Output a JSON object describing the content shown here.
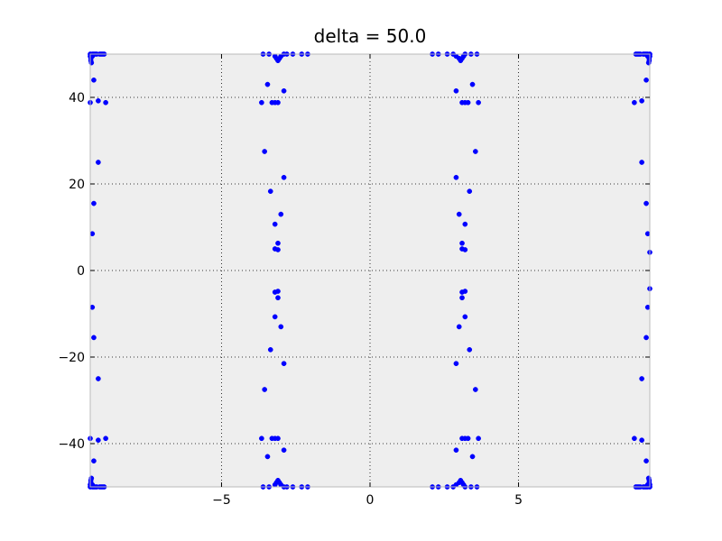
{
  "chart_data": {
    "type": "scatter",
    "title": "delta = 50.0",
    "xlabel": "",
    "ylabel": "",
    "xlim": [
      -9.42,
      9.42
    ],
    "ylim": [
      -50,
      50
    ],
    "grid": true,
    "grid_style": "dotted",
    "background": "#eeeeee",
    "marker_color": "#0000ff",
    "xticks": [
      {
        "value": -5,
        "label": "−5"
      },
      {
        "value": 0,
        "label": "0"
      },
      {
        "value": 5,
        "label": "5"
      }
    ],
    "yticks": [
      {
        "value": -40,
        "label": "−40"
      },
      {
        "value": -20,
        "label": "−20"
      },
      {
        "value": 0,
        "label": "0"
      },
      {
        "value": 20,
        "label": "20"
      },
      {
        "value": 40,
        "label": "40"
      }
    ],
    "series": [
      {
        "x": [
          -9.42,
          -9.42,
          -9.4,
          -9.4,
          -9.38,
          -9.35,
          -9.35,
          -9.3,
          -9.25,
          -9.2,
          -9.1,
          -9.05,
          -9.0,
          -8.95,
          -9.3,
          -9.15,
          -8.9,
          -9.42,
          -9.42,
          -9.4,
          -9.4,
          -9.38,
          -9.35,
          -9.35,
          -9.3,
          -9.25,
          -9.2,
          -9.1,
          -9.05,
          -9.0,
          -8.95,
          -9.3,
          -9.15,
          -8.9,
          -9.42,
          -9.35,
          -9.3,
          -9.15,
          -9.42,
          -9.35,
          -9.3,
          -9.15,
          -3.6,
          -3.4,
          -3.2,
          -3.15,
          -3.1,
          -3.05,
          -3.0,
          -2.9,
          -2.8,
          -2.6,
          -2.3,
          -2.1,
          -3.6,
          -3.4,
          -3.2,
          -3.15,
          -3.1,
          -3.05,
          -3.0,
          -2.9,
          -2.8,
          -2.6,
          -2.3,
          -2.1,
          -3.45,
          -2.9,
          -3.65,
          -3.3,
          -3.2,
          -3.1,
          -2.9,
          -3.55,
          -3.35,
          -3.0,
          -3.2,
          -3.1,
          -3.45,
          -2.9,
          -3.65,
          -3.3,
          -3.2,
          -3.1,
          -2.9,
          -3.55,
          -3.35,
          -3.0,
          -3.2,
          -3.1,
          -3.2,
          -3.1,
          -3.2,
          -3.1,
          2.1,
          2.3,
          2.6,
          2.8,
          2.9,
          3.0,
          3.05,
          3.1,
          3.15,
          3.2,
          3.4,
          3.6,
          2.1,
          2.3,
          2.6,
          2.8,
          2.9,
          3.0,
          3.05,
          3.1,
          3.15,
          3.2,
          3.4,
          3.6,
          2.9,
          3.45,
          3.65,
          2.9,
          3.3,
          3.2,
          3.1,
          3.55,
          3.35,
          3.0,
          3.2,
          3.1,
          2.9,
          3.45,
          3.65,
          2.9,
          3.3,
          3.2,
          3.1,
          3.55,
          3.35,
          3.0,
          3.2,
          3.1,
          3.1,
          3.2,
          3.1,
          3.2,
          8.9,
          8.95,
          9.0,
          9.05,
          9.1,
          9.2,
          9.25,
          9.3,
          9.35,
          9.35,
          9.38,
          9.4,
          9.4,
          9.42,
          9.42,
          9.15,
          9.3,
          8.9,
          8.95,
          9.0,
          9.05,
          9.1,
          9.2,
          9.25,
          9.3,
          9.35,
          9.35,
          9.38,
          9.4,
          9.4,
          9.42,
          9.42,
          9.15,
          9.3,
          9.15,
          9.3,
          9.35,
          9.42,
          9.15,
          9.3,
          9.35,
          9.42
        ],
        "y": [
          50,
          49.5,
          49.0,
          48.5,
          48.0,
          49.5,
          50,
          50,
          50,
          50,
          50,
          50,
          50,
          50,
          44,
          39.2,
          38.8,
          -50,
          -49.5,
          -49.0,
          -48.5,
          -48.0,
          -49.5,
          -50,
          -50,
          -50,
          -50,
          -50,
          -50,
          -50,
          -50,
          -44,
          -39.2,
          -38.8,
          38.8,
          8.5,
          15.5,
          25.0,
          -38.8,
          -8.5,
          -15.5,
          -25.0,
          50,
          50,
          49.5,
          49.0,
          48.5,
          49.0,
          49.5,
          50,
          50,
          50,
          50,
          50,
          -50,
          -50,
          -49.5,
          -49.0,
          -48.5,
          -49.0,
          -49.5,
          -50,
          -50,
          -50,
          -50,
          -50,
          43.0,
          41.5,
          38.8,
          38.8,
          38.8,
          38.8,
          21.5,
          27.5,
          18.3,
          13.0,
          10.7,
          6.3,
          -43.0,
          -41.5,
          -38.8,
          -38.8,
          -38.8,
          -38.8,
          -21.5,
          -27.5,
          -18.3,
          -13.0,
          -10.7,
          -6.3,
          5.0,
          4.8,
          -5.0,
          -4.8,
          50,
          50,
          50,
          50,
          49.5,
          49.0,
          48.5,
          49.0,
          49.5,
          50,
          50,
          50,
          -50,
          -50,
          -50,
          -50,
          -49.5,
          -49.0,
          -48.5,
          -49.0,
          -49.5,
          -50,
          -50,
          -50,
          41.5,
          43.0,
          38.8,
          21.5,
          38.8,
          38.8,
          38.8,
          27.5,
          18.3,
          13.0,
          10.7,
          6.3,
          -41.5,
          -43.0,
          -38.8,
          -21.5,
          -38.8,
          -38.8,
          -38.8,
          -27.5,
          -18.3,
          -13.0,
          -10.7,
          -6.3,
          5.0,
          4.8,
          -5.0,
          -4.8,
          38.8,
          50,
          50,
          50,
          50,
          50,
          50,
          50,
          50,
          49.5,
          48.0,
          48.5,
          49.0,
          49.5,
          50,
          39.2,
          44,
          -38.8,
          -50,
          -50,
          -50,
          -50,
          -50,
          -50,
          -50,
          -50,
          -49.5,
          -48.0,
          -48.5,
          -49.0,
          -49.5,
          -50,
          -39.2,
          -44,
          25.0,
          15.5,
          8.5,
          4.2,
          -25.0,
          -15.5,
          -8.5,
          -4.2
        ]
      }
    ]
  }
}
